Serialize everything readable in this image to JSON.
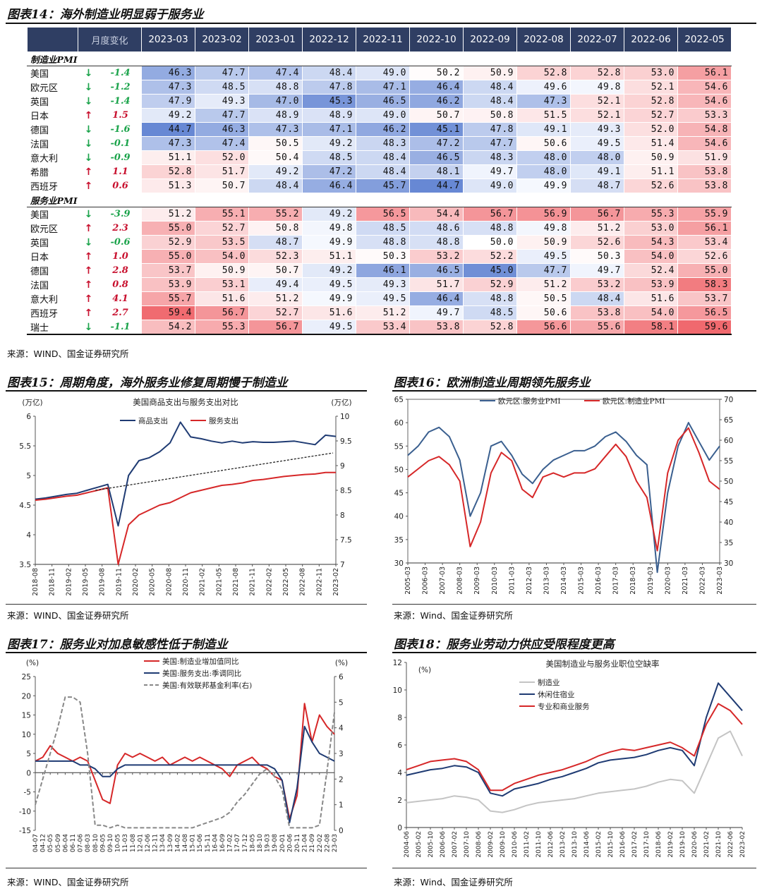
{
  "fig14": {
    "title": "图表14：海外制造业明显弱于服务业",
    "header_change": "月度变化",
    "months": [
      "2023-03",
      "2023-02",
      "2023-01",
      "2022-12",
      "2022-11",
      "2022-10",
      "2022-09",
      "2022-08",
      "2022-07",
      "2022-06",
      "2022-05"
    ],
    "source": "来源：WIND、国金证券研究所",
    "colors": {
      "up": "#c8102e",
      "down": "#1aa34a",
      "header_bg": "#2f3e63"
    },
    "sections": [
      {
        "label": "制造业PMI",
        "rows": [
          {
            "country": "美国",
            "arrow": "↓",
            "delta": "-1.4",
            "values": [
              "46.3",
              "47.7",
              "47.4",
              "48.4",
              "49.0",
              "50.2",
              "50.9",
              "52.8",
              "52.8",
              "53.0",
              "56.1"
            ]
          },
          {
            "country": "欧元区",
            "arrow": "↓",
            "delta": "-1.2",
            "values": [
              "47.3",
              "48.5",
              "48.8",
              "47.8",
              "47.1",
              "46.4",
              "48.4",
              "49.6",
              "49.8",
              "52.1",
              "54.6"
            ]
          },
          {
            "country": "英国",
            "arrow": "↓",
            "delta": "-1.4",
            "values": [
              "47.9",
              "49.3",
              "47.0",
              "45.3",
              "46.5",
              "46.2",
              "48.4",
              "47.3",
              "52.1",
              "52.8",
              "54.6"
            ]
          },
          {
            "country": "日本",
            "arrow": "↑",
            "delta": "1.5",
            "values": [
              "49.2",
              "47.7",
              "48.9",
              "48.9",
              "49.0",
              "50.7",
              "50.8",
              "51.5",
              "52.1",
              "52.7",
              "53.3"
            ]
          },
          {
            "country": "德国",
            "arrow": "↓",
            "delta": "-1.6",
            "values": [
              "44.7",
              "46.3",
              "47.3",
              "47.1",
              "46.2",
              "45.1",
              "47.8",
              "49.1",
              "49.3",
              "52.0",
              "54.8"
            ]
          },
          {
            "country": "法国",
            "arrow": "↓",
            "delta": "-0.1",
            "values": [
              "47.3",
              "47.4",
              "50.5",
              "49.2",
              "48.3",
              "47.2",
              "47.7",
              "50.6",
              "49.5",
              "51.4",
              "54.6"
            ]
          },
          {
            "country": "意大利",
            "arrow": "↓",
            "delta": "-0.9",
            "values": [
              "51.1",
              "52.0",
              "50.4",
              "48.5",
              "48.4",
              "46.5",
              "48.3",
              "48.0",
              "48.0",
              "50.9",
              "51.9"
            ]
          },
          {
            "country": "希腊",
            "arrow": "↑",
            "delta": "1.1",
            "values": [
              "52.8",
              "51.7",
              "49.2",
              "47.2",
              "48.4",
              "48.1",
              "49.7",
              "48.0",
              "49.1",
              "51.1",
              "53.8"
            ]
          },
          {
            "country": "西班牙",
            "arrow": "↑",
            "delta": "0.6",
            "values": [
              "51.3",
              "50.7",
              "48.4",
              "46.4",
              "45.7",
              "44.7",
              "49.0",
              "49.9",
              "48.7",
              "52.6",
              "53.8"
            ]
          }
        ]
      },
      {
        "label": "服务业PMI",
        "rows": [
          {
            "country": "美国",
            "arrow": "↓",
            "delta": "-3.9",
            "values": [
              "51.2",
              "55.1",
              "55.2",
              "49.2",
              "56.5",
              "54.4",
              "56.7",
              "56.9",
              "56.7",
              "55.3",
              "55.9"
            ]
          },
          {
            "country": "欧元区",
            "arrow": "↑",
            "delta": "2.3",
            "values": [
              "55.0",
              "52.7",
              "50.8",
              "49.8",
              "48.5",
              "48.6",
              "48.8",
              "49.8",
              "51.2",
              "53.0",
              "56.1"
            ]
          },
          {
            "country": "英国",
            "arrow": "↓",
            "delta": "-0.6",
            "values": [
              "52.9",
              "53.5",
              "48.7",
              "49.9",
              "48.8",
              "48.8",
              "50.0",
              "50.9",
              "52.6",
              "54.3",
              "53.4"
            ]
          },
          {
            "country": "日本",
            "arrow": "↑",
            "delta": "1.0",
            "values": [
              "55.0",
              "54.0",
              "52.3",
              "51.1",
              "50.3",
              "53.2",
              "52.2",
              "49.5",
              "50.3",
              "54.0",
              "52.6"
            ]
          },
          {
            "country": "德国",
            "arrow": "↑",
            "delta": "2.8",
            "values": [
              "53.7",
              "50.9",
              "50.7",
              "49.2",
              "46.1",
              "46.5",
              "45.0",
              "47.7",
              "49.7",
              "52.4",
              "55.0"
            ]
          },
          {
            "country": "法国",
            "arrow": "↑",
            "delta": "0.8",
            "values": [
              "53.9",
              "53.1",
              "49.4",
              "49.5",
              "49.3",
              "51.7",
              "52.9",
              "51.2",
              "53.2",
              "53.9",
              "58.3"
            ]
          },
          {
            "country": "意大利",
            "arrow": "↑",
            "delta": "4.1",
            "values": [
              "55.7",
              "51.6",
              "51.2",
              "49.9",
              "49.5",
              "46.4",
              "48.8",
              "50.5",
              "48.4",
              "51.6",
              "53.7"
            ]
          },
          {
            "country": "西班牙",
            "arrow": "↑",
            "delta": "2.7",
            "values": [
              "59.4",
              "56.7",
              "52.7",
              "51.6",
              "51.2",
              "49.7",
              "48.5",
              "50.6",
              "53.8",
              "54.0",
              "56.5"
            ]
          },
          {
            "country": "瑞士",
            "arrow": "↓",
            "delta": "-1.1",
            "values": [
              "54.2",
              "55.3",
              "56.7",
              "49.5",
              "53.4",
              "53.8",
              "52.8",
              "56.6",
              "55.6",
              "58.1",
              "59.6"
            ]
          }
        ]
      }
    ]
  },
  "fig15": {
    "title": "图表15：周期角度，海外服务业修复周期慢于制造业",
    "source": "来源：WIND、国金证券研究所",
    "chart_data": {
      "type": "line",
      "title": "美国商品支出与服务支出对比",
      "left_unit": "(万亿)",
      "right_unit": "(万亿)",
      "ylim_left": [
        3.5,
        6
      ],
      "ylim_right": [
        7,
        10
      ],
      "left_ticks": [
        "3.5",
        "4",
        "4.5",
        "5",
        "5.5",
        "6"
      ],
      "right_ticks": [
        "7",
        "7.5",
        "8",
        "8.5",
        "9",
        "9.5",
        "10"
      ],
      "x_labels": [
        "2018-08",
        "2018-11",
        "2019-02",
        "2019-05",
        "2019-08",
        "2019-11",
        "2020-02",
        "2020-05",
        "2020-08",
        "2020-11",
        "2021-02",
        "2021-05",
        "2021-08",
        "2021-11",
        "2022-02",
        "2022-05",
        "2022-08",
        "2022-11",
        "2023-02"
      ],
      "series": [
        {
          "name": "商品支出",
          "axis": "left",
          "color": "#1f3b73",
          "values": [
            4.6,
            4.62,
            4.65,
            4.68,
            4.7,
            4.75,
            4.8,
            4.85,
            4.15,
            5.0,
            5.25,
            5.3,
            5.4,
            5.55,
            5.9,
            5.65,
            5.62,
            5.58,
            5.55,
            5.58,
            5.55,
            5.57,
            5.56,
            5.56,
            5.57,
            5.58,
            5.55,
            5.52,
            5.68,
            5.66
          ]
        },
        {
          "name": "服务支出",
          "axis": "right",
          "color": "#d62728",
          "values": [
            8.3,
            8.32,
            8.35,
            8.38,
            8.4,
            8.45,
            8.5,
            8.55,
            7.0,
            7.8,
            8.0,
            8.1,
            8.2,
            8.25,
            8.35,
            8.45,
            8.5,
            8.55,
            8.6,
            8.62,
            8.65,
            8.7,
            8.72,
            8.75,
            8.78,
            8.8,
            8.82,
            8.83,
            8.86,
            8.86
          ]
        },
        {
          "name": "trend",
          "axis": "left",
          "color": "#222222",
          "dashed": true,
          "values": [
            4.75,
            5.38
          ]
        }
      ]
    }
  },
  "fig16": {
    "title": "图表16：欧洲制造业周期领先服务业",
    "source": "来源：Wind、国金证券研究所",
    "chart_data": {
      "type": "line",
      "ylim_left": [
        30,
        65
      ],
      "ylim_right": [
        30,
        70
      ],
      "left_ticks": [
        "30",
        "35",
        "40",
        "45",
        "50",
        "55",
        "60",
        "65"
      ],
      "right_ticks": [
        "30",
        "35",
        "40",
        "45",
        "50",
        "55",
        "60",
        "65",
        "70"
      ],
      "x_labels": [
        "2005-03",
        "2006-03",
        "2007-03",
        "2008-03",
        "2009-03",
        "2010-03",
        "2011-03",
        "2012-03",
        "2013-03",
        "2014-03",
        "2015-03",
        "2016-03",
        "2017-03",
        "2018-03",
        "2019-03",
        "2020-03",
        "2021-03",
        "2022-03",
        "2023-03"
      ],
      "series": [
        {
          "name": "欧元区:服务业PMI",
          "axis": "left",
          "color": "#3a5f8f",
          "values": [
            53,
            55,
            58,
            59,
            57,
            52,
            40,
            45,
            55,
            56,
            53,
            49,
            47,
            50,
            52,
            53,
            54,
            54,
            55,
            57,
            58,
            56,
            53,
            51,
            28,
            45,
            55,
            60,
            56,
            52,
            55
          ]
        },
        {
          "name": "欧元区:制造业PMI",
          "axis": "right",
          "color": "#d62728",
          "values": [
            51,
            53,
            55,
            56,
            54,
            50,
            34,
            40,
            52,
            57,
            55,
            48,
            46,
            51,
            52,
            51,
            52,
            52,
            53,
            56,
            59,
            56,
            50,
            46,
            33,
            52,
            60,
            63,
            57,
            50,
            48
          ]
        }
      ]
    }
  },
  "fig17": {
    "title": "图表17：服务业对加息敏感性低于制造业",
    "source": "来源：WIND、国金证券研究所",
    "chart_data": {
      "type": "line",
      "left_unit": "(%)",
      "right_unit": "(%)",
      "ylim_left": [
        -15,
        25
      ],
      "ylim_right": [
        0,
        6
      ],
      "left_ticks": [
        "-15",
        "-10",
        "-5",
        "0",
        "5",
        "10",
        "15",
        "20",
        "25"
      ],
      "right_ticks": [
        "0",
        "1",
        "2",
        "3",
        "4",
        "5",
        "6"
      ],
      "x_labels": [
        "04-07",
        "04-12",
        "05-05",
        "05-09",
        "06-04",
        "06-11",
        "07-06",
        "08-03",
        "08-10",
        "09-05",
        "09-10",
        "10-05",
        "11-03",
        "11-08",
        "12-01",
        "12-06",
        "12-11",
        "13-04",
        "13-09",
        "14-02",
        "14-08",
        "15-01",
        "15-06",
        "15-11",
        "16-04",
        "16-09",
        "17-02",
        "17-07",
        "17-12",
        "18-05",
        "18-10",
        "19-03",
        "19-08",
        "20-01",
        "20-06",
        "20-11",
        "21-04",
        "21-09",
        "22-02",
        "22-08",
        "23-03"
      ],
      "series": [
        {
          "name": "美国:制造业增加值同比",
          "axis": "left",
          "color": "#d62728",
          "values": [
            3,
            4,
            7,
            5,
            4,
            3,
            4,
            3,
            -2,
            -7,
            -8,
            2,
            5,
            4,
            5,
            4,
            3,
            4,
            2,
            3,
            4,
            3,
            4,
            3,
            2,
            1,
            -1,
            2,
            3,
            4,
            2,
            1,
            -1,
            -2,
            -12,
            -6,
            18,
            8,
            15,
            12,
            10
          ]
        },
        {
          "name": "美国:服务支出:季调同比",
          "axis": "left",
          "color": "#1f3b73",
          "values": [
            3,
            3,
            3,
            3,
            3,
            3,
            2,
            2,
            1,
            -1,
            -1,
            1,
            2,
            2,
            2,
            2,
            2,
            2,
            2,
            2,
            2,
            2,
            2,
            2,
            2,
            2,
            2,
            2,
            2,
            2,
            2,
            2,
            1,
            -2,
            -13,
            -4,
            12,
            8,
            5,
            4,
            3
          ]
        },
        {
          "name": "美国:有效联邦基金利率(右)",
          "axis": "right",
          "color": "#888888",
          "dashed": true,
          "values": [
            1,
            2,
            3,
            4,
            5.2,
            5.2,
            5,
            3,
            0.2,
            0.2,
            0.1,
            0.2,
            0.1,
            0.1,
            0.1,
            0.1,
            0.1,
            0.1,
            0.1,
            0.1,
            0.1,
            0.1,
            0.2,
            0.3,
            0.4,
            0.5,
            0.7,
            1.1,
            1.4,
            1.8,
            2.2,
            2.4,
            2.1,
            1.6,
            0.1,
            0.1,
            0.1,
            0.1,
            0.2,
            2.3,
            4.6
          ]
        }
      ]
    }
  },
  "fig18": {
    "title": "图表18：服务业劳动力供应受限程度更高",
    "source": "来源：Wind、国金证券研究所",
    "chart_data": {
      "type": "line",
      "title": "美国制造业与服务业职位空缺率",
      "left_unit": "(%)",
      "ylim_left": [
        0,
        12
      ],
      "left_ticks": [
        "0",
        "2",
        "4",
        "6",
        "8",
        "10",
        "12"
      ],
      "x_labels": [
        "2004-06",
        "2005-02",
        "2005-10",
        "2006-06",
        "2007-02",
        "2007-10",
        "2008-06",
        "2009-02",
        "2009-10",
        "2010-06",
        "2011-02",
        "2011-10",
        "2012-06",
        "2013-02",
        "2013-10",
        "2014-06",
        "2015-02",
        "2015-10",
        "2016-06",
        "2017-02",
        "2017-10",
        "2018-06",
        "2019-02",
        "2019-10",
        "2020-06",
        "2021-02",
        "2021-10",
        "2022-06",
        "2023-02"
      ],
      "series": [
        {
          "name": "制造业",
          "axis": "left",
          "color": "#c4c4c4",
          "values": [
            1.8,
            1.9,
            2.0,
            2.1,
            2.3,
            2.2,
            2.0,
            1.2,
            1.1,
            1.3,
            1.6,
            1.8,
            1.9,
            2.0,
            2.1,
            2.3,
            2.5,
            2.6,
            2.7,
            2.8,
            3.0,
            3.3,
            3.5,
            3.4,
            2.5,
            4.5,
            6.5,
            7.0,
            5.2
          ]
        },
        {
          "name": "休闲住宿业",
          "axis": "left",
          "color": "#1f3b73",
          "values": [
            3.8,
            4.0,
            4.2,
            4.3,
            4.5,
            4.4,
            4.0,
            2.5,
            2.3,
            2.8,
            3.0,
            3.2,
            3.5,
            3.7,
            4.0,
            4.3,
            4.7,
            4.9,
            5.0,
            5.1,
            5.3,
            5.6,
            5.8,
            5.6,
            4.5,
            8.0,
            10.5,
            9.5,
            8.5
          ]
        },
        {
          "name": "专业和商业服务",
          "axis": "left",
          "color": "#d62728",
          "values": [
            4.2,
            4.5,
            4.8,
            4.9,
            5.0,
            4.8,
            4.2,
            2.7,
            2.7,
            3.2,
            3.5,
            3.8,
            4.0,
            4.2,
            4.5,
            4.8,
            5.2,
            5.5,
            5.7,
            5.6,
            5.8,
            6.0,
            6.2,
            5.8,
            5.2,
            7.5,
            9.0,
            8.5,
            7.5
          ]
        }
      ]
    }
  }
}
